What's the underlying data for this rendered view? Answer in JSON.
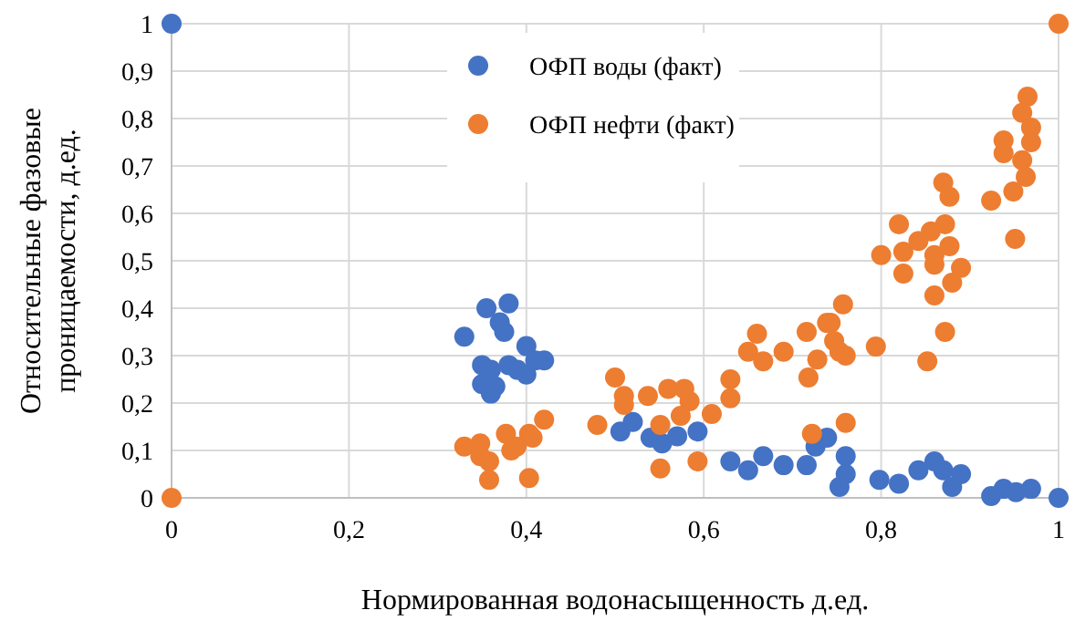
{
  "chart_data": {
    "type": "scatter",
    "xlabel": "Нормированная водонасыщенность д.ед.",
    "ylabel": "Относительные фазовые проницаемости, д.ед.",
    "xlim": [
      0,
      1
    ],
    "ylim": [
      0,
      1
    ],
    "xticks": [
      0,
      {
        "value": 0.2,
        "label": "0,2"
      },
      {
        "value": 0.4,
        "label": "0,4"
      },
      {
        "value": 0.6,
        "label": "0,6"
      },
      {
        "value": 0.8,
        "label": "0,8"
      },
      1
    ],
    "yticks": [
      0,
      {
        "value": 0.1,
        "label": "0,1"
      },
      {
        "value": 0.2,
        "label": "0,2"
      },
      {
        "value": 0.3,
        "label": "0,3"
      },
      {
        "value": 0.4,
        "label": "0,4"
      },
      {
        "value": 0.5,
        "label": "0,5"
      },
      {
        "value": 0.6,
        "label": "0,6"
      },
      {
        "value": 0.7,
        "label": "0,7"
      },
      {
        "value": 0.8,
        "label": "0,8"
      },
      {
        "value": 0.9,
        "label": "0,9"
      },
      1
    ],
    "grid": true,
    "legend": "top",
    "marker": "circle",
    "series": [
      {
        "name": "ОФП воды (факт)",
        "color": "#4472c4",
        "x": [
          0,
          1,
          0.33,
          0.355,
          0.38,
          0.37,
          0.375,
          0.35,
          0.36,
          0.35,
          0.36,
          0.38,
          0.39,
          0.4,
          0.4,
          0.41,
          0.42,
          0.365,
          0.506,
          0.54,
          0.553,
          0.593,
          0.52,
          0.57,
          0.63,
          0.65,
          0.667,
          0.69,
          0.716,
          0.726,
          0.739,
          0.76,
          0.753,
          0.76,
          0.798,
          0.82,
          0.842,
          0.86,
          0.87,
          0.89,
          0.88,
          0.924,
          0.938,
          0.952,
          0.969
        ],
        "values": [
          1,
          0,
          0.34,
          0.4,
          0.41,
          0.37,
          0.35,
          0.28,
          0.27,
          0.24,
          0.22,
          0.28,
          0.27,
          0.32,
          0.26,
          0.29,
          0.29,
          0.235,
          0.14,
          0.127,
          0.115,
          0.14,
          0.16,
          0.13,
          0.077,
          0.058,
          0.088,
          0.069,
          0.069,
          0.108,
          0.127,
          0.05,
          0.023,
          0.088,
          0.038,
          0.03,
          0.058,
          0.077,
          0.058,
          0.05,
          0.023,
          0.004,
          0.019,
          0.012,
          0.019
        ]
      },
      {
        "name": "ОФП нефти (факт)",
        "color": "#ed7d31",
        "x": [
          0,
          1,
          0.33,
          0.348,
          0.348,
          0.358,
          0.377,
          0.383,
          0.403,
          0.407,
          0.42,
          0.358,
          0.403,
          0.389,
          0.5,
          0.51,
          0.51,
          0.537,
          0.56,
          0.578,
          0.584,
          0.574,
          0.551,
          0.48,
          0.551,
          0.593,
          0.609,
          0.63,
          0.63,
          0.65,
          0.66,
          0.667,
          0.69,
          0.716,
          0.718,
          0.728,
          0.739,
          0.747,
          0.757,
          0.76,
          0.722,
          0.76,
          0.965,
          0.959,
          0.969,
          0.938,
          0.969,
          0.938,
          0.959,
          0.963,
          0.949,
          0.924,
          0.87,
          0.877,
          0.82,
          0.8,
          0.825,
          0.842,
          0.856,
          0.872,
          0.877,
          0.86,
          0.951,
          0.89,
          0.86,
          0.88,
          0.825,
          0.86,
          0.872,
          0.852,
          0.743,
          0.753,
          0.794
        ],
        "values": [
          0,
          1,
          0.108,
          0.115,
          0.088,
          0.077,
          0.135,
          0.1,
          0.135,
          0.127,
          0.165,
          0.038,
          0.042,
          0.108,
          0.254,
          0.215,
          0.196,
          0.215,
          0.23,
          0.23,
          0.204,
          0.173,
          0.154,
          0.154,
          0.062,
          0.077,
          0.177,
          0.25,
          0.21,
          0.308,
          0.346,
          0.288,
          0.308,
          0.35,
          0.254,
          0.292,
          0.369,
          0.331,
          0.408,
          0.3,
          0.135,
          0.158,
          0.846,
          0.812,
          0.781,
          0.754,
          0.75,
          0.727,
          0.712,
          0.677,
          0.646,
          0.627,
          0.665,
          0.635,
          0.577,
          0.512,
          0.519,
          0.542,
          0.562,
          0.577,
          0.531,
          0.512,
          0.546,
          0.485,
          0.492,
          0.454,
          0.473,
          0.427,
          0.35,
          0.288,
          0.369,
          0.308,
          0.319
        ]
      }
    ]
  }
}
